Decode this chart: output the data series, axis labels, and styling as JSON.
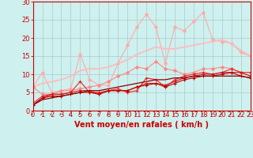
{
  "x": [
    0,
    1,
    2,
    3,
    4,
    5,
    6,
    7,
    8,
    9,
    10,
    11,
    12,
    13,
    14,
    15,
    16,
    17,
    18,
    19,
    20,
    21,
    22,
    23
  ],
  "series": [
    {
      "name": "line_spiky_light",
      "color": "#ffaaaa",
      "linewidth": 0.8,
      "marker": "D",
      "markersize": 2.0,
      "values": [
        6.5,
        10.5,
        5.0,
        5.5,
        6.0,
        15.5,
        8.5,
        7.0,
        7.0,
        13.0,
        18.0,
        23.0,
        26.5,
        23.0,
        13.0,
        23.0,
        22.0,
        24.5,
        27.0,
        19.5,
        19.0,
        18.5,
        16.0,
        15.0
      ]
    },
    {
      "name": "line_smooth_light",
      "color": "#ffbbbb",
      "linewidth": 1.3,
      "marker": null,
      "markersize": 0,
      "values": [
        6.5,
        7.5,
        8.0,
        8.5,
        9.5,
        11.0,
        11.5,
        11.5,
        12.0,
        13.0,
        14.0,
        15.5,
        16.5,
        17.5,
        17.0,
        17.0,
        17.5,
        18.0,
        18.5,
        19.0,
        19.5,
        18.5,
        16.5,
        15.0
      ]
    },
    {
      "name": "line_mid_marker",
      "color": "#ff8888",
      "linewidth": 0.8,
      "marker": "D",
      "markersize": 2.0,
      "values": [
        6.5,
        4.5,
        4.5,
        5.5,
        5.5,
        6.0,
        6.5,
        7.0,
        8.0,
        9.5,
        10.5,
        12.0,
        11.5,
        13.5,
        11.5,
        11.0,
        10.0,
        10.5,
        11.5,
        11.5,
        12.0,
        11.5,
        10.5,
        9.5
      ]
    },
    {
      "name": "line_red1",
      "color": "#ee2222",
      "linewidth": 0.8,
      "marker": "+",
      "markersize": 3,
      "values": [
        2.0,
        4.0,
        4.5,
        4.5,
        5.0,
        8.0,
        5.0,
        5.0,
        5.5,
        6.0,
        5.0,
        5.5,
        9.0,
        8.5,
        6.5,
        8.5,
        9.5,
        10.0,
        10.5,
        10.0,
        10.5,
        11.5,
        10.5,
        10.5
      ]
    },
    {
      "name": "line_red2",
      "color": "#dd1111",
      "linewidth": 0.8,
      "marker": "+",
      "markersize": 3,
      "values": [
        1.5,
        3.5,
        4.5,
        4.5,
        5.0,
        5.5,
        5.5,
        4.5,
        5.5,
        5.5,
        5.5,
        6.5,
        7.5,
        7.5,
        7.0,
        8.0,
        9.0,
        9.5,
        10.0,
        10.0,
        10.5,
        10.5,
        10.5,
        9.5
      ]
    },
    {
      "name": "line_darkred",
      "color": "#bb0000",
      "linewidth": 0.8,
      "marker": "+",
      "markersize": 3,
      "values": [
        1.5,
        3.5,
        4.0,
        4.0,
        4.5,
        5.0,
        5.0,
        4.5,
        5.5,
        5.5,
        5.5,
        6.5,
        7.0,
        7.5,
        6.5,
        7.5,
        8.5,
        9.0,
        9.5,
        9.5,
        10.0,
        10.5,
        9.5,
        9.0
      ]
    },
    {
      "name": "line_darkest",
      "color": "#880000",
      "linewidth": 0.9,
      "marker": null,
      "markersize": 0,
      "values": [
        1.5,
        3.0,
        3.5,
        4.0,
        4.5,
        5.0,
        5.5,
        5.5,
        6.0,
        6.5,
        7.0,
        7.5,
        8.0,
        8.5,
        8.5,
        9.0,
        9.0,
        9.5,
        9.5,
        9.5,
        9.5,
        9.5,
        9.5,
        9.0
      ]
    }
  ],
  "xlabel": "Vent moyen/en rafales ( km/h )",
  "xlim": [
    0,
    23
  ],
  "ylim": [
    0,
    30
  ],
  "xticks": [
    0,
    1,
    2,
    3,
    4,
    5,
    6,
    7,
    8,
    9,
    10,
    11,
    12,
    13,
    14,
    15,
    16,
    17,
    18,
    19,
    20,
    21,
    22,
    23
  ],
  "yticks": [
    0,
    5,
    10,
    15,
    20,
    25,
    30
  ],
  "bg_color": "#cef0ee",
  "grid_color": "#aacccc",
  "xlabel_color": "#cc0000",
  "xlabel_fontsize": 7,
  "tick_color": "#cc0000",
  "tick_fontsize": 6,
  "spine_color": "#cc0000"
}
